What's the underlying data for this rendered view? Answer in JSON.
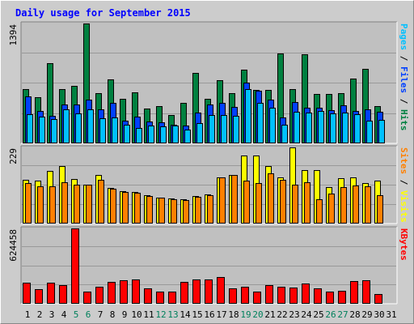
{
  "chart_data": {
    "type": "bar",
    "title": "Daily usage for September 2015",
    "days": [
      1,
      2,
      3,
      4,
      5,
      6,
      7,
      8,
      9,
      10,
      11,
      12,
      13,
      14,
      15,
      16,
      17,
      18,
      19,
      20,
      21,
      22,
      23,
      24,
      25,
      26,
      27,
      28,
      29,
      30,
      31
    ],
    "weekend_days": [
      5,
      6,
      12,
      13,
      19,
      20,
      26,
      27
    ],
    "panels": [
      {
        "id": "hits",
        "max_label": "1394",
        "ylim": [
          0,
          1394
        ],
        "right_label": [
          {
            "text": "Pages",
            "color": "#00c0ff"
          },
          {
            "text": " / ",
            "color": "#000000"
          },
          {
            "text": "Files",
            "color": "#0040ff"
          },
          {
            "text": " / ",
            "color": "#000000"
          },
          {
            "text": "Hits",
            "color": "#008040"
          }
        ],
        "series": [
          {
            "name": "Hits",
            "color": "#008040",
            "values": [
              628,
              538,
              930,
              630,
              665,
              1394,
              580,
              745,
              515,
              598,
              408,
              435,
              330,
              470,
              820,
              518,
              738,
              588,
              860,
              625,
              625,
              1048,
              630,
              1040,
              570,
              570,
              585,
              750,
              870,
              431,
              0
            ]
          },
          {
            "name": "Files",
            "color": "#0040ff",
            "values": [
              550,
              380,
              320,
              450,
              454,
              505,
              400,
              470,
              265,
              315,
              250,
              245,
              220,
              210,
              360,
              450,
              475,
              420,
              710,
              608,
              510,
              300,
              480,
              410,
              410,
              385,
              438,
              380,
              400,
              370,
              0
            ]
          },
          {
            "name": "Pages",
            "color": "#00c0ff",
            "values": [
              335,
              308,
              280,
              395,
              345,
              400,
              290,
              298,
              215,
              180,
              205,
              200,
              205,
              162,
              240,
              325,
              325,
              318,
              630,
              470,
              418,
              218,
              365,
              360,
              375,
              350,
              360,
              338,
              265,
              275,
              0
            ]
          }
        ]
      },
      {
        "id": "visits",
        "max_label": "229",
        "ylim": [
          0,
          229
        ],
        "right_label": [
          {
            "text": "Sites",
            "color": "#ff8000"
          },
          {
            "text": " / ",
            "color": "#000000"
          },
          {
            "text": "Visits",
            "color": "#ffff00"
          }
        ],
        "series": [
          {
            "name": "Visits",
            "color": "#ffff00",
            "values": [
              132,
              128,
              158,
              172,
              134,
              117,
              145,
              108,
              97,
              96,
              85,
              78,
              75,
              73,
              83,
              87,
              140,
              145,
              204,
              204,
              172,
              140,
              229,
              161,
              162,
              110,
              137,
              140,
              122,
              130,
              0
            ]
          },
          {
            "name": "Sites",
            "color": "#ff8000",
            "values": [
              122,
              113,
              112,
              124,
              116,
              117,
              132,
              105,
              94,
              93,
              82,
              78,
              74,
              70,
              80,
              86,
              138,
              145,
              130,
              123,
              151,
              131,
              118,
              124,
              72,
              91,
              110,
              115,
              113,
              85,
              0
            ]
          }
        ]
      },
      {
        "id": "kbytes",
        "max_label": "624458",
        "ylim": [
          0,
          624458
        ],
        "right_label": [
          {
            "text": "KBytes",
            "color": "#ff0000"
          }
        ],
        "series": [
          {
            "name": "KBytes",
            "color": "#ff0000",
            "values": [
              173000,
              120000,
              172000,
              152000,
              624458,
              103000,
              143000,
              178000,
              193000,
              199000,
              125000,
              103000,
              99000,
              182000,
              200000,
              202000,
              224000,
              129000,
              139000,
              103000,
              152000,
              143000,
              133000,
              166000,
              129000,
              99000,
              108000,
              190000,
              198000,
              80000,
              0
            ]
          }
        ]
      }
    ]
  },
  "colors": {
    "background": "#cccccc",
    "plot_background": "#c0c0c0",
    "title": "#0000ff",
    "weekday_label": "#000000",
    "weekend_label": "#00805c",
    "grid": "#999999"
  }
}
